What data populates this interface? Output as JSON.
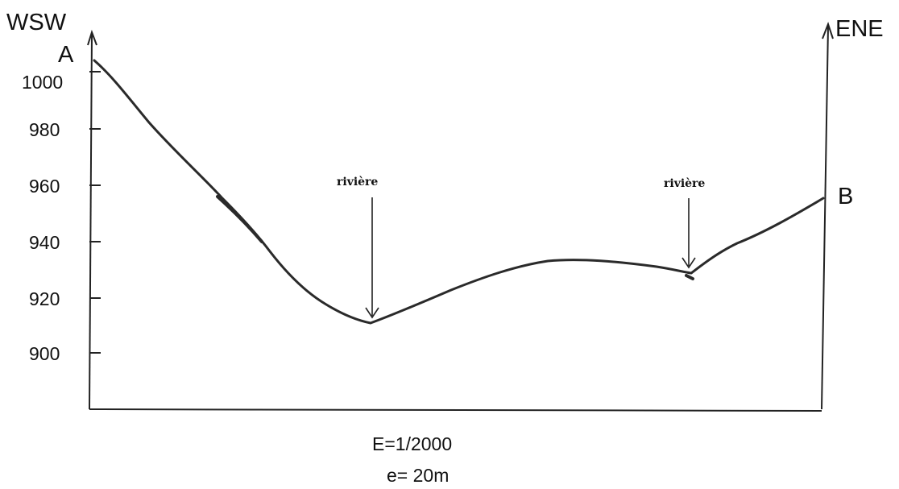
{
  "profile": {
    "left_direction": "WSW",
    "right_direction": "ENE",
    "start_label": "A",
    "end_label": "B",
    "y_ticks": [
      {
        "label": "1000",
        "value": 1000
      },
      {
        "label": "980",
        "value": 980
      },
      {
        "label": "960",
        "value": 960
      },
      {
        "label": "940",
        "value": 940
      },
      {
        "label": "920",
        "value": 920
      },
      {
        "label": "900",
        "value": 900
      }
    ],
    "annotations": {
      "river_1": "rivière",
      "river_2": "rivière"
    },
    "scale": {
      "horizontal": "E=1/2000",
      "vertical": "e= 20m"
    }
  }
}
